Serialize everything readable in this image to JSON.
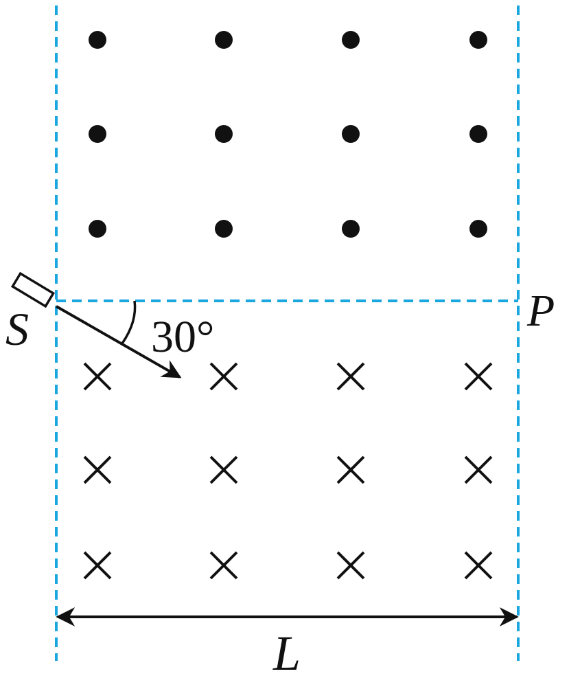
{
  "labels": {
    "source": "S",
    "point": "P",
    "angle": "30°",
    "width": "L"
  },
  "field": {
    "out_of_page": {
      "rows": 3,
      "cols": 4
    },
    "into_page": {
      "rows": 3,
      "cols": 4
    }
  },
  "colors": {
    "boundary": "#1aa7e0",
    "ink": "#111111"
  },
  "icons": {
    "out_marker": "dot-icon",
    "in_marker": "cross-icon",
    "source": "emitter-icon"
  }
}
